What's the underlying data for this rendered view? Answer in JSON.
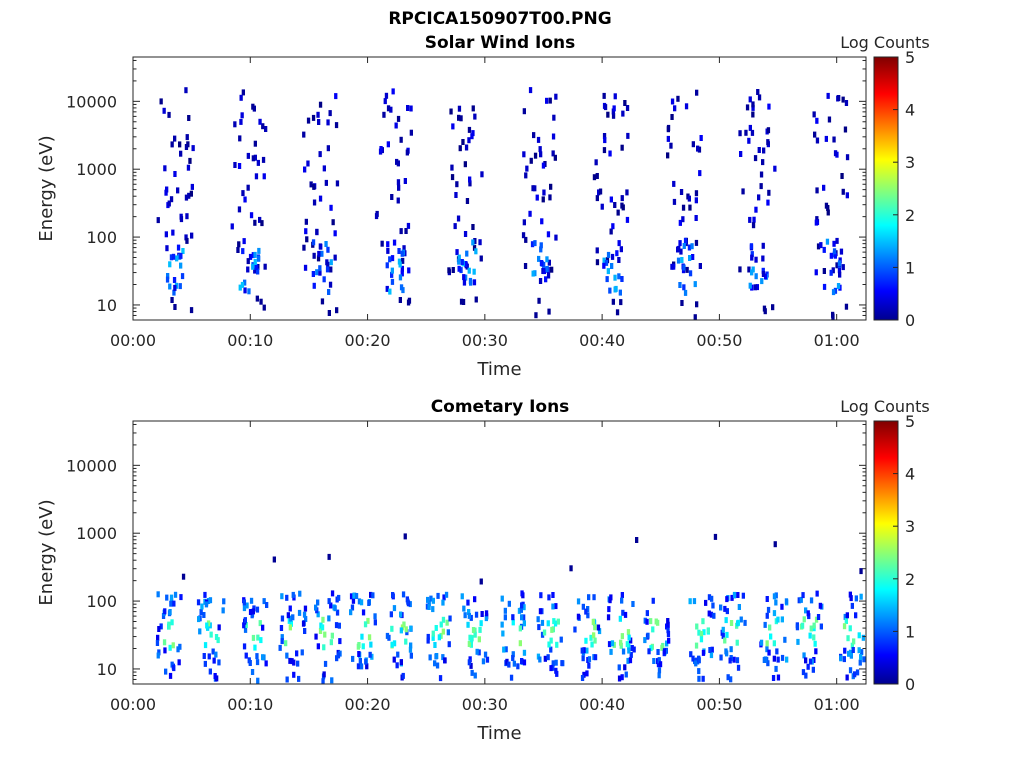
{
  "figure": {
    "title": "RPCICA150907T00.PNG"
  },
  "chart_data": [
    {
      "type": "heatmap",
      "title": "Solar Wind Ions",
      "xlabel": "Time",
      "ylabel": "Energy (eV)",
      "x_tick_labels": [
        "00:00",
        "00:10",
        "00:20",
        "00:30",
        "00:40",
        "00:50",
        "01:00"
      ],
      "x_ticks_minutes": [
        0,
        10,
        20,
        30,
        40,
        50,
        60
      ],
      "xlim_minutes": [
        0,
        62.5
      ],
      "y_scale": "log",
      "ylim": [
        6,
        45000
      ],
      "y_tick_values": [
        10,
        100,
        1000,
        10000
      ],
      "y_tick_labels": [
        "10",
        "100",
        "1000",
        "10000"
      ],
      "colorbar": {
        "label": "Log Counts",
        "min": 0,
        "max": 5,
        "ticks": [
          "0",
          "1",
          "2",
          "3",
          "4",
          "5"
        ],
        "colormap": "jet"
      },
      "cycle_period_minutes": 6.2,
      "cycle_starts_minutes": [
        2.0,
        8.2,
        14.4,
        20.6,
        26.8,
        33.0,
        39.2,
        45.4,
        51.6,
        57.8
      ],
      "features": [
        {
          "name": "sparse scatter",
          "energy_range_eV": [
            30,
            15000
          ],
          "log_counts_range": [
            0,
            0.6
          ]
        },
        {
          "name": "low-energy cluster",
          "energy_range_eV": [
            15,
            90
          ],
          "log_counts_range": [
            0.3,
            1.6
          ]
        }
      ]
    },
    {
      "type": "heatmap",
      "title": "Cometary Ions",
      "xlabel": "Time",
      "ylabel": "Energy (eV)",
      "x_tick_labels": [
        "00:00",
        "00:10",
        "00:20",
        "00:30",
        "00:40",
        "00:50",
        "01:00"
      ],
      "x_ticks_minutes": [
        0,
        10,
        20,
        30,
        40,
        50,
        60
      ],
      "xlim_minutes": [
        0,
        62.5
      ],
      "y_scale": "log",
      "ylim": [
        6,
        45000
      ],
      "y_tick_values": [
        10,
        100,
        1000,
        10000
      ],
      "y_tick_labels": [
        "10",
        "100",
        "1000",
        "10000"
      ],
      "colorbar": {
        "label": "Log Counts",
        "min": 0,
        "max": 5,
        "ticks": [
          "0",
          "1",
          "2",
          "3",
          "4",
          "5"
        ],
        "colormap": "jet"
      },
      "bands_minutes": [
        3.0,
        6.5,
        10.2,
        13.5,
        16.5,
        19.5,
        22.5,
        26.0,
        29.0,
        32.2,
        35.5,
        38.6,
        41.5,
        44.5,
        48.3,
        51.0,
        54.5,
        57.5,
        61.2
      ],
      "features": [
        {
          "name": "low-energy bands",
          "energy_range_eV": [
            6,
            130
          ],
          "log_counts_range": [
            0.5,
            2.6
          ]
        },
        {
          "name": "sparse high-energy points",
          "energy_range_eV": [
            150,
            1000
          ],
          "log_counts_range": [
            0,
            0.4
          ]
        }
      ]
    }
  ]
}
